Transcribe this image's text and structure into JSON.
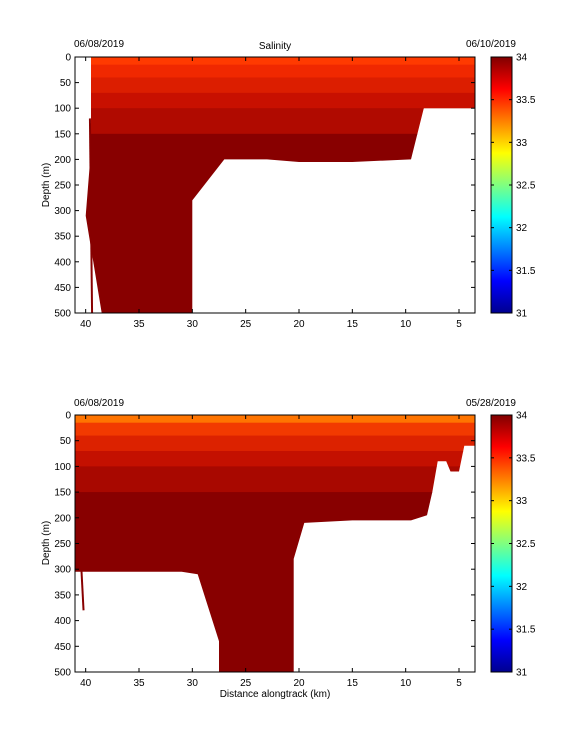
{
  "chart_data": [
    {
      "type": "heatmap",
      "title": "Salinity",
      "date_left": "06/08/2019",
      "date_right": "06/10/2019",
      "xlabel": "",
      "ylabel": "Depth (m)",
      "xlim": [
        41,
        3.5
      ],
      "ylim": [
        0,
        500
      ],
      "x_ticks": [
        40,
        35,
        30,
        25,
        20,
        15,
        10,
        5
      ],
      "y_ticks": [
        0,
        50,
        100,
        150,
        200,
        250,
        300,
        350,
        400,
        450,
        500
      ],
      "outline": [
        [
          39.5,
          0
        ],
        [
          39.5,
          180
        ],
        [
          40,
          310
        ],
        [
          38.5,
          500
        ],
        [
          35,
          500
        ],
        [
          30,
          500
        ],
        [
          30,
          280
        ],
        [
          27,
          200
        ],
        [
          23,
          200
        ],
        [
          20,
          205
        ],
        [
          15,
          205
        ],
        [
          9.5,
          200
        ],
        [
          8.3,
          100
        ],
        [
          3.5,
          100
        ],
        [
          3.5,
          0
        ]
      ],
      "spike": [
        [
          39.6,
          120
        ],
        [
          39.4,
          500
        ]
      ],
      "bands": [
        {
          "max_depth": 15,
          "color": "#ff3a00"
        },
        {
          "max_depth": 40,
          "color": "#f02800"
        },
        {
          "max_depth": 70,
          "color": "#dc1e00"
        },
        {
          "max_depth": 100,
          "color": "#c81000"
        },
        {
          "max_depth": 150,
          "color": "#b00a00"
        },
        {
          "max_depth": 500,
          "color": "#880000"
        }
      ],
      "colorbar": {
        "min": 31,
        "max": 34,
        "ticks": [
          34,
          33.5,
          33,
          32.5,
          32,
          31.5,
          31
        ]
      }
    },
    {
      "type": "heatmap",
      "title": "",
      "date_left": "06/08/2019",
      "date_right": "05/28/2019",
      "xlabel": "Distance alongtrack (km)",
      "ylabel": "Depth (m)",
      "xlim": [
        41,
        3.5
      ],
      "ylim": [
        0,
        500
      ],
      "x_ticks": [
        40,
        35,
        30,
        25,
        20,
        15,
        10,
        5
      ],
      "y_ticks": [
        0,
        50,
        100,
        150,
        200,
        250,
        300,
        350,
        400,
        450,
        500
      ],
      "outline": [
        [
          41,
          0
        ],
        [
          41,
          305
        ],
        [
          38,
          305
        ],
        [
          31,
          305
        ],
        [
          29.5,
          310
        ],
        [
          27.5,
          440
        ],
        [
          27.5,
          500
        ],
        [
          24,
          500
        ],
        [
          20.5,
          500
        ],
        [
          20.5,
          280
        ],
        [
          19.5,
          210
        ],
        [
          15,
          205
        ],
        [
          9.5,
          205
        ],
        [
          8,
          195
        ],
        [
          7.5,
          150
        ],
        [
          7,
          90
        ],
        [
          6.2,
          90
        ],
        [
          5.8,
          110
        ],
        [
          5,
          110
        ],
        [
          4.5,
          60
        ],
        [
          3.5,
          60
        ],
        [
          3.5,
          0
        ]
      ],
      "spike": [
        [
          40.4,
          300
        ],
        [
          40.2,
          380
        ]
      ],
      "bands": [
        {
          "max_depth": 15,
          "color": "#ff7400"
        },
        {
          "max_depth": 40,
          "color": "#f23a00"
        },
        {
          "max_depth": 70,
          "color": "#dc2200"
        },
        {
          "max_depth": 100,
          "color": "#c41000"
        },
        {
          "max_depth": 150,
          "color": "#a80800"
        },
        {
          "max_depth": 500,
          "color": "#880000"
        }
      ],
      "colorbar": {
        "min": 31,
        "max": 34,
        "ticks": [
          34,
          33.5,
          33,
          32.5,
          32,
          31.5,
          31
        ]
      }
    }
  ]
}
